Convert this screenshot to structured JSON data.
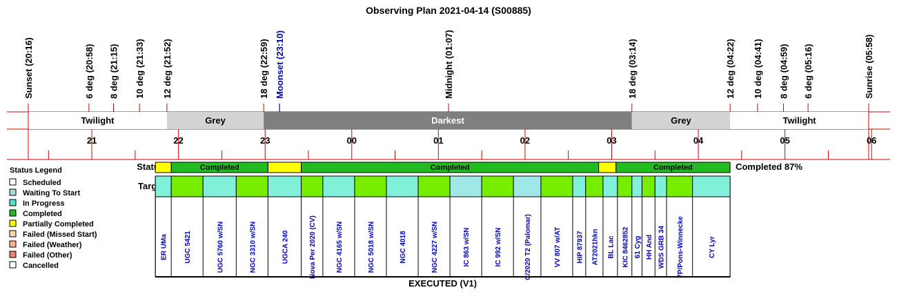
{
  "title": "Observing Plan 2021-04-14 (S00885)",
  "colors": {
    "line": "#cc0000",
    "twilight": "#ffffff",
    "grey": "#d3d3d3",
    "darkest": "#7f7f7f",
    "scheduled": "#ffffff",
    "waiting": "#a8d8e0",
    "in_progress": "#55e0d0",
    "completed": "#22bb22",
    "partial": "#ffff00",
    "failed_missed": "#ffd8a8",
    "failed_weather": "#ffb090",
    "failed_other": "#f08070",
    "cancelled": "#ffffff",
    "target_green": "#77ee00",
    "target_aqua": "#80f0d8",
    "target_light": "#a0e8e8",
    "target_text": "#0000cc",
    "moon": "#0000cc"
  },
  "chart_data": {
    "type": "timeline",
    "time_axis": {
      "start": "20:16",
      "end": "06:07",
      "hour_ticks": [
        "21",
        "22",
        "23",
        "00",
        "01",
        "02",
        "03",
        "04",
        "05",
        "06"
      ]
    },
    "events": [
      {
        "label": "Sunset (20:16)",
        "time": "20:16"
      },
      {
        "label": "6 deg (20:58)",
        "time": "20:58"
      },
      {
        "label": "8 deg (21:15)",
        "time": "21:15"
      },
      {
        "label": "10 deg (21:33)",
        "time": "21:33"
      },
      {
        "label": "12 deg (21:52)",
        "time": "21:52"
      },
      {
        "label": "18 deg (22:59)",
        "time": "22:59"
      },
      {
        "label": "Moonset (23:10)",
        "time": "23:10",
        "moon": true
      },
      {
        "label": "Midnight (01:07)",
        "time": "01:07"
      },
      {
        "label": "18 deg (03:14)",
        "time": "03:14"
      },
      {
        "label": "12 deg (04:22)",
        "time": "04:22"
      },
      {
        "label": "10 deg (04:41)",
        "time": "04:41"
      },
      {
        "label": "8 deg (04:59)",
        "time": "04:59"
      },
      {
        "label": "6 deg (05:16)",
        "time": "05:16"
      },
      {
        "label": "Sunrise (05:58)",
        "time": "05:58"
      }
    ],
    "periods": [
      {
        "label": "Twilight",
        "start": "20:16",
        "end": "21:52",
        "kind": "twilight"
      },
      {
        "label": "Grey",
        "start": "21:52",
        "end": "22:59",
        "kind": "grey"
      },
      {
        "label": "Darkest",
        "start": "22:59",
        "end": "03:14",
        "kind": "darkest"
      },
      {
        "label": "Grey",
        "start": "03:14",
        "end": "04:22",
        "kind": "grey"
      },
      {
        "label": "Twilight",
        "start": "04:22",
        "end": "05:58",
        "kind": "twilight"
      }
    ],
    "status_row_label": "Status",
    "targets_row_label": "Targets",
    "status_blocks": [
      {
        "label": "",
        "status": "partial",
        "start": "21:44",
        "end": "21:55"
      },
      {
        "label": "Completed",
        "status": "completed",
        "start": "21:55",
        "end": "23:02"
      },
      {
        "label": "",
        "status": "partial",
        "start": "23:02",
        "end": "23:25"
      },
      {
        "label": "Completed",
        "status": "completed",
        "start": "23:25",
        "end": "02:51"
      },
      {
        "label": "",
        "status": "partial",
        "start": "02:51",
        "end": "03:03"
      },
      {
        "label": "Completed",
        "status": "completed",
        "start": "03:03",
        "end": "04:22"
      }
    ],
    "completion_label": "Completed 87%",
    "targets": [
      {
        "name": "ER UMa",
        "start": "21:44",
        "end": "21:55",
        "color": "target_aqua"
      },
      {
        "name": "UGC 5421",
        "start": "21:55",
        "end": "22:17",
        "color": "target_green"
      },
      {
        "name": "UGC 5760 w/SN",
        "start": "22:17",
        "end": "22:40",
        "color": "target_aqua"
      },
      {
        "name": "NGC 3310 w/SN",
        "start": "22:40",
        "end": "23:02",
        "color": "target_green"
      },
      {
        "name": "UGCA 240",
        "start": "23:02",
        "end": "23:25",
        "color": "target_aqua"
      },
      {
        "name": "Nova Per 2020 (CV)",
        "start": "23:25",
        "end": "23:40",
        "color": "target_green"
      },
      {
        "name": "NGC 4165 w/SN",
        "start": "23:40",
        "end": "00:02",
        "color": "target_aqua"
      },
      {
        "name": "NGC 5018 w/SN",
        "start": "00:02",
        "end": "00:24",
        "color": "target_green"
      },
      {
        "name": "NGC 4018",
        "start": "00:24",
        "end": "00:46",
        "color": "target_aqua"
      },
      {
        "name": "NGC 4227 w/SN",
        "start": "00:46",
        "end": "01:08",
        "color": "target_green"
      },
      {
        "name": "IC 863 w/SN",
        "start": "01:08",
        "end": "01:30",
        "color": "target_light"
      },
      {
        "name": "IC 992 w/SN",
        "start": "01:30",
        "end": "01:52",
        "color": "target_green"
      },
      {
        "name": "C/2020 T2 (Palomar)",
        "start": "01:52",
        "end": "02:11",
        "color": "target_light"
      },
      {
        "name": "VV 807 w/AT",
        "start": "02:11",
        "end": "02:33",
        "color": "target_green"
      },
      {
        "name": "HIP 87937",
        "start": "02:33",
        "end": "02:42",
        "color": "target_aqua"
      },
      {
        "name": "AT2021hkn",
        "start": "02:42",
        "end": "02:54",
        "color": "target_green"
      },
      {
        "name": "BL Lac",
        "start": "02:54",
        "end": "03:04",
        "color": "target_aqua"
      },
      {
        "name": "KIC 8462852",
        "start": "03:04",
        "end": "03:14",
        "color": "target_green"
      },
      {
        "name": "61 Cyg",
        "start": "03:14",
        "end": "03:21",
        "color": "target_aqua"
      },
      {
        "name": "HH And",
        "start": "03:21",
        "end": "03:30",
        "color": "target_green"
      },
      {
        "name": "WDS GRB 34",
        "start": "03:30",
        "end": "03:38",
        "color": "target_aqua"
      },
      {
        "name": "7P/Pons-Winnecke",
        "start": "03:38",
        "end": "03:56",
        "color": "target_green"
      },
      {
        "name": "CY Lyr",
        "start": "03:56",
        "end": "04:22",
        "color": "target_aqua"
      }
    ],
    "footer": "EXECUTED (V1)"
  },
  "legend": {
    "title": "Status Legend",
    "items": [
      {
        "label": "Scheduled",
        "color": "scheduled"
      },
      {
        "label": "Waiting To Start",
        "color": "waiting"
      },
      {
        "label": "In Progress",
        "color": "in_progress"
      },
      {
        "label": "Completed",
        "color": "completed"
      },
      {
        "label": "Partially Completed",
        "color": "partial"
      },
      {
        "label": "Failed (Missed Start)",
        "color": "failed_missed"
      },
      {
        "label": "Failed (Weather)",
        "color": "failed_weather"
      },
      {
        "label": "Failed (Other)",
        "color": "failed_other"
      },
      {
        "label": "Cancelled",
        "color": "cancelled"
      }
    ]
  }
}
